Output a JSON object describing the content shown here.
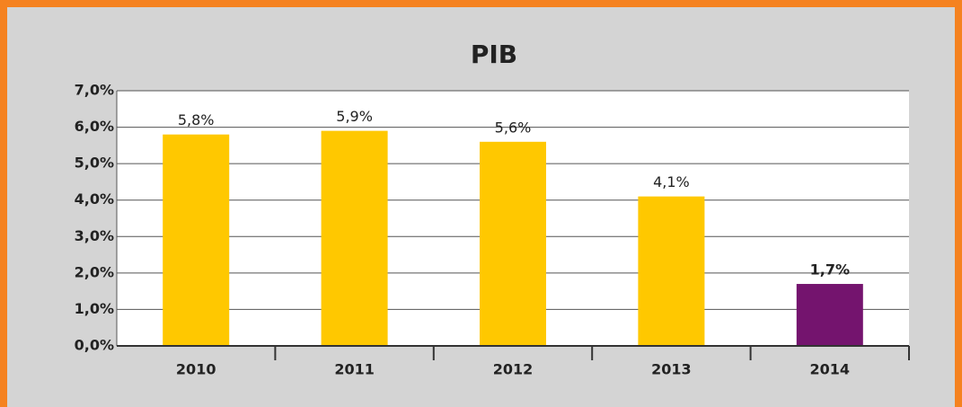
{
  "chart_data": {
    "type": "bar",
    "title": "PIB",
    "categories": [
      "2010",
      "2011",
      "2012",
      "2013",
      "2014"
    ],
    "values": [
      5.8,
      5.9,
      5.6,
      4.1,
      1.7
    ],
    "value_labels": [
      "5,8%",
      "5,9%",
      "5,6%",
      "4,1%",
      "1,7%"
    ],
    "colors": [
      "#ffc800",
      "#ffc800",
      "#ffc800",
      "#ffc800",
      "#74146e"
    ],
    "ylim": [
      0,
      7
    ],
    "yticks": [
      {
        "value": 0,
        "label": "0,0%"
      },
      {
        "value": 1,
        "label": "1,0%"
      },
      {
        "value": 2,
        "label": "2,0%"
      },
      {
        "value": 3,
        "label": "3,0%"
      },
      {
        "value": 4,
        "label": "4,0%"
      },
      {
        "value": 5,
        "label": "5,0%"
      },
      {
        "value": 6,
        "label": "6,0%"
      },
      {
        "value": 7,
        "label": "7,0%"
      }
    ],
    "grid": true
  }
}
